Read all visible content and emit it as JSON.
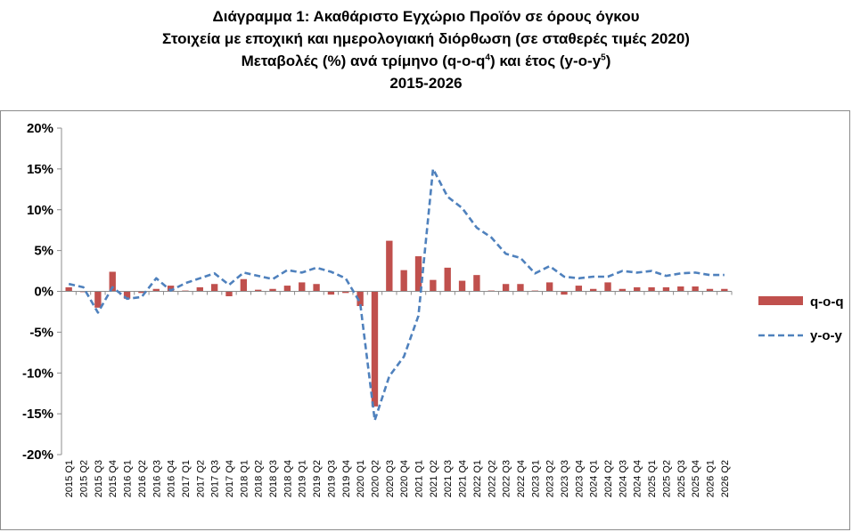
{
  "chart_data": {
    "type": "bar+line",
    "title": [
      "Διάγραμμα 1: Ακαθάριστο Εγχώριο Προϊόν σε όρους όγκου",
      "Στοιχεία με εποχική και ημερολογιακή διόρθωση (σε σταθερές τιμές 2020)",
      "Μεταβολές (%) ανά τρίμηνο (q-o-q",
      "4",
      ") και έτος (y-o-y",
      "5",
      ")",
      "2015-2026"
    ],
    "ylim": [
      -20,
      20
    ],
    "yticks": [
      -20,
      -15,
      -10,
      -5,
      0,
      5,
      10,
      15,
      20
    ],
    "ytick_labels": [
      "-20%",
      "-15%",
      "-10%",
      "-5%",
      "0%",
      "5%",
      "10%",
      "15%",
      "20%"
    ],
    "grid": false,
    "legend_position": "right",
    "categories": [
      "2015 Q1",
      "2015 Q2",
      "2015 Q3",
      "2015 Q4",
      "2016 Q1",
      "2016 Q2",
      "2016 Q3",
      "2016 Q4",
      "2017 Q1",
      "2017 Q2",
      "2017 Q3",
      "2017 Q4",
      "2018 Q1",
      "2018 Q2",
      "2018 Q3",
      "2018 Q4",
      "2019 Q1",
      "2019 Q2",
      "2019 Q3",
      "2019 Q4",
      "2020 Q1",
      "2020 Q2",
      "2020 Q3",
      "2020 Q4",
      "2021 Q1",
      "2021 Q2",
      "2021 Q3",
      "2021 Q4",
      "2022 Q1",
      "2022 Q2",
      "2022 Q3",
      "2022 Q4",
      "2023 Q1",
      "2023 Q2",
      "2023 Q3",
      "2023 Q4",
      "2024 Q1",
      "2024 Q2",
      "2024 Q3",
      "2024 Q4",
      "2025 Q1",
      "2025 Q2",
      "2025 Q3",
      "2025 Q4",
      "2026 Q1",
      "2026 Q2"
    ],
    "series": [
      {
        "name": "q-o-q",
        "kind": "bar",
        "color": "#c0504d",
        "values": [
          0.5,
          -0.1,
          -2.0,
          2.4,
          -0.9,
          -0.2,
          0.3,
          0.7,
          0.1,
          0.5,
          0.9,
          -0.6,
          1.5,
          0.2,
          0.3,
          0.7,
          1.1,
          0.9,
          -0.4,
          -0.2,
          -1.8,
          -14.1,
          6.2,
          2.6,
          4.3,
          1.4,
          2.9,
          1.3,
          2.0,
          0.1,
          0.9,
          0.9,
          0.1,
          1.1,
          -0.4,
          0.7,
          0.3,
          1.1,
          0.3,
          0.5,
          0.5,
          0.5,
          0.6,
          0.6,
          0.3,
          0.3
        ]
      },
      {
        "name": "y-o-y",
        "kind": "line",
        "color": "#4f81bd",
        "dash": "dashed",
        "values": [
          0.9,
          0.5,
          -2.6,
          0.5,
          -0.9,
          -0.7,
          1.6,
          0.1,
          1.0,
          1.6,
          2.2,
          0.8,
          2.3,
          1.9,
          1.5,
          2.6,
          2.3,
          2.9,
          2.4,
          1.6,
          -1.4,
          -15.8,
          -10.4,
          -8.0,
          -3.0,
          15.0,
          11.6,
          10.2,
          7.8,
          6.6,
          4.6,
          4.1,
          2.2,
          3.1,
          1.8,
          1.6,
          1.8,
          1.8,
          2.5,
          2.3,
          2.5,
          1.9,
          2.2,
          2.3,
          2.0,
          2.0
        ]
      }
    ]
  }
}
